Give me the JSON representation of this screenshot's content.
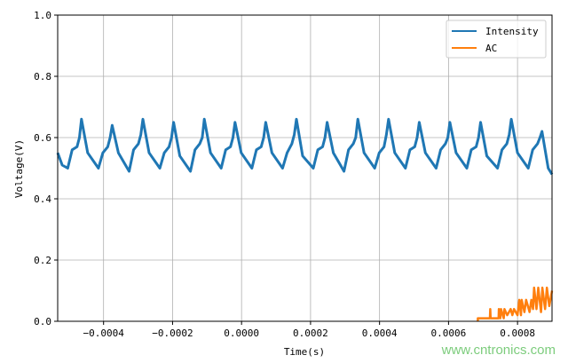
{
  "chart_data": {
    "type": "line",
    "title": "",
    "xlabel": "Time(s)",
    "ylabel": "Voltage(V)",
    "xlim": [
      -0.000533,
      0.0009
    ],
    "ylim": [
      0,
      1.0
    ],
    "grid": true,
    "legend_position": "top-right",
    "x_ticks": [
      -0.0004,
      -0.0002,
      0.0,
      0.0002,
      0.0004,
      0.0006,
      0.0008
    ],
    "x_tick_labels": [
      "−0.0004",
      "−0.0002",
      "0.0000",
      "0.0002",
      "0.0004",
      "0.0006",
      "0.0008"
    ],
    "y_ticks": [
      0,
      0.2,
      0.4,
      0.6,
      0.8,
      1.0
    ],
    "y_tick_labels": [
      "0.0",
      "0.2",
      "0.4",
      "0.6",
      "0.8",
      "1.0"
    ],
    "series": [
      {
        "name": "Intensity",
        "color": "#1f77b4",
        "points": [
          [
            -0.000533,
            0.55
          ],
          [
            -0.00052,
            0.51
          ],
          [
            -0.000504,
            0.5
          ],
          [
            -0.000491,
            0.56
          ],
          [
            -0.000477,
            0.57
          ],
          [
            -0.00047,
            0.6
          ],
          [
            -0.000464,
            0.66
          ],
          [
            -0.000446,
            0.55
          ],
          [
            -0.000415,
            0.5
          ],
          [
            -0.000402,
            0.55
          ],
          [
            -0.000388,
            0.57
          ],
          [
            -0.000381,
            0.6
          ],
          [
            -0.000375,
            0.64
          ],
          [
            -0.000357,
            0.55
          ],
          [
            -0.000326,
            0.49
          ],
          [
            -0.000313,
            0.56
          ],
          [
            -0.000299,
            0.58
          ],
          [
            -0.000292,
            0.61
          ],
          [
            -0.000286,
            0.66
          ],
          [
            -0.000268,
            0.55
          ],
          [
            -0.000237,
            0.5
          ],
          [
            -0.000224,
            0.55
          ],
          [
            -0.00021,
            0.57
          ],
          [
            -0.000203,
            0.6
          ],
          [
            -0.000197,
            0.65
          ],
          [
            -0.000179,
            0.54
          ],
          [
            -0.000148,
            0.49
          ],
          [
            -0.000135,
            0.56
          ],
          [
            -0.000121,
            0.58
          ],
          [
            -0.000114,
            0.6
          ],
          [
            -0.000108,
            0.66
          ],
          [
            -9e-05,
            0.55
          ],
          [
            -5.9e-05,
            0.5
          ],
          [
            -4.6e-05,
            0.56
          ],
          [
            -3.2e-05,
            0.57
          ],
          [
            -2.5e-05,
            0.6
          ],
          [
            -1.9e-05,
            0.65
          ],
          [
            -1e-06,
            0.55
          ],
          [
            3e-05,
            0.5
          ],
          [
            4.3e-05,
            0.56
          ],
          [
            5.7e-05,
            0.57
          ],
          [
            6.4e-05,
            0.6
          ],
          [
            7e-05,
            0.65
          ],
          [
            8.8e-05,
            0.55
          ],
          [
            0.000119,
            0.5
          ],
          [
            0.000132,
            0.55
          ],
          [
            0.000146,
            0.58
          ],
          [
            0.000153,
            0.61
          ],
          [
            0.000159,
            0.66
          ],
          [
            0.000177,
            0.54
          ],
          [
            0.000208,
            0.5
          ],
          [
            0.000221,
            0.56
          ],
          [
            0.000235,
            0.57
          ],
          [
            0.000242,
            0.6
          ],
          [
            0.000248,
            0.65
          ],
          [
            0.000266,
            0.55
          ],
          [
            0.000297,
            0.49
          ],
          [
            0.00031,
            0.56
          ],
          [
            0.000324,
            0.58
          ],
          [
            0.000331,
            0.6
          ],
          [
            0.000337,
            0.66
          ],
          [
            0.000355,
            0.55
          ],
          [
            0.000386,
            0.5
          ],
          [
            0.000399,
            0.55
          ],
          [
            0.000413,
            0.57
          ],
          [
            0.00042,
            0.61
          ],
          [
            0.000426,
            0.66
          ],
          [
            0.000444,
            0.55
          ],
          [
            0.000475,
            0.5
          ],
          [
            0.000488,
            0.56
          ],
          [
            0.000502,
            0.57
          ],
          [
            0.000509,
            0.6
          ],
          [
            0.000515,
            0.65
          ],
          [
            0.000533,
            0.55
          ],
          [
            0.000564,
            0.5
          ],
          [
            0.000577,
            0.56
          ],
          [
            0.000591,
            0.58
          ],
          [
            0.000598,
            0.6
          ],
          [
            0.000604,
            0.65
          ],
          [
            0.000622,
            0.55
          ],
          [
            0.000653,
            0.5
          ],
          [
            0.000666,
            0.56
          ],
          [
            0.00068,
            0.57
          ],
          [
            0.000687,
            0.6
          ],
          [
            0.000693,
            0.65
          ],
          [
            0.000711,
            0.54
          ],
          [
            0.000742,
            0.5
          ],
          [
            0.000755,
            0.56
          ],
          [
            0.000769,
            0.58
          ],
          [
            0.000776,
            0.61
          ],
          [
            0.000782,
            0.66
          ],
          [
            0.0008,
            0.55
          ],
          [
            0.000831,
            0.5
          ],
          [
            0.000844,
            0.56
          ],
          [
            0.000858,
            0.58
          ],
          [
            0.000865,
            0.6
          ],
          [
            0.000871,
            0.62
          ],
          [
            0.000889,
            0.5
          ],
          [
            0.0009,
            0.48
          ]
        ]
      },
      {
        "name": "AC",
        "color": "#ff7f0e",
        "points": [
          [
            0.000685,
            0.0
          ],
          [
            0.000685,
            0.01
          ],
          [
            0.00072,
            0.01
          ],
          [
            0.000721,
            0.04
          ],
          [
            0.000722,
            0.01
          ],
          [
            0.000745,
            0.01
          ],
          [
            0.000746,
            0.04
          ],
          [
            0.00075,
            0.01
          ],
          [
            0.000752,
            0.04
          ],
          [
            0.00076,
            0.01
          ],
          [
            0.000762,
            0.04
          ],
          [
            0.00077,
            0.02
          ],
          [
            0.00078,
            0.04
          ],
          [
            0.000785,
            0.02
          ],
          [
            0.00079,
            0.04
          ],
          [
            0.0008,
            0.02
          ],
          [
            0.000805,
            0.07
          ],
          [
            0.00081,
            0.02
          ],
          [
            0.000812,
            0.07
          ],
          [
            0.00082,
            0.03
          ],
          [
            0.000825,
            0.07
          ],
          [
            0.000835,
            0.03
          ],
          [
            0.00084,
            0.07
          ],
          [
            0.000845,
            0.04
          ],
          [
            0.000848,
            0.11
          ],
          [
            0.000855,
            0.04
          ],
          [
            0.00086,
            0.11
          ],
          [
            0.000868,
            0.03
          ],
          [
            0.000872,
            0.11
          ],
          [
            0.00088,
            0.04
          ],
          [
            0.000885,
            0.11
          ],
          [
            0.000892,
            0.05
          ],
          [
            0.0009,
            0.1
          ]
        ]
      }
    ]
  },
  "watermark": "www.cntronics.com"
}
